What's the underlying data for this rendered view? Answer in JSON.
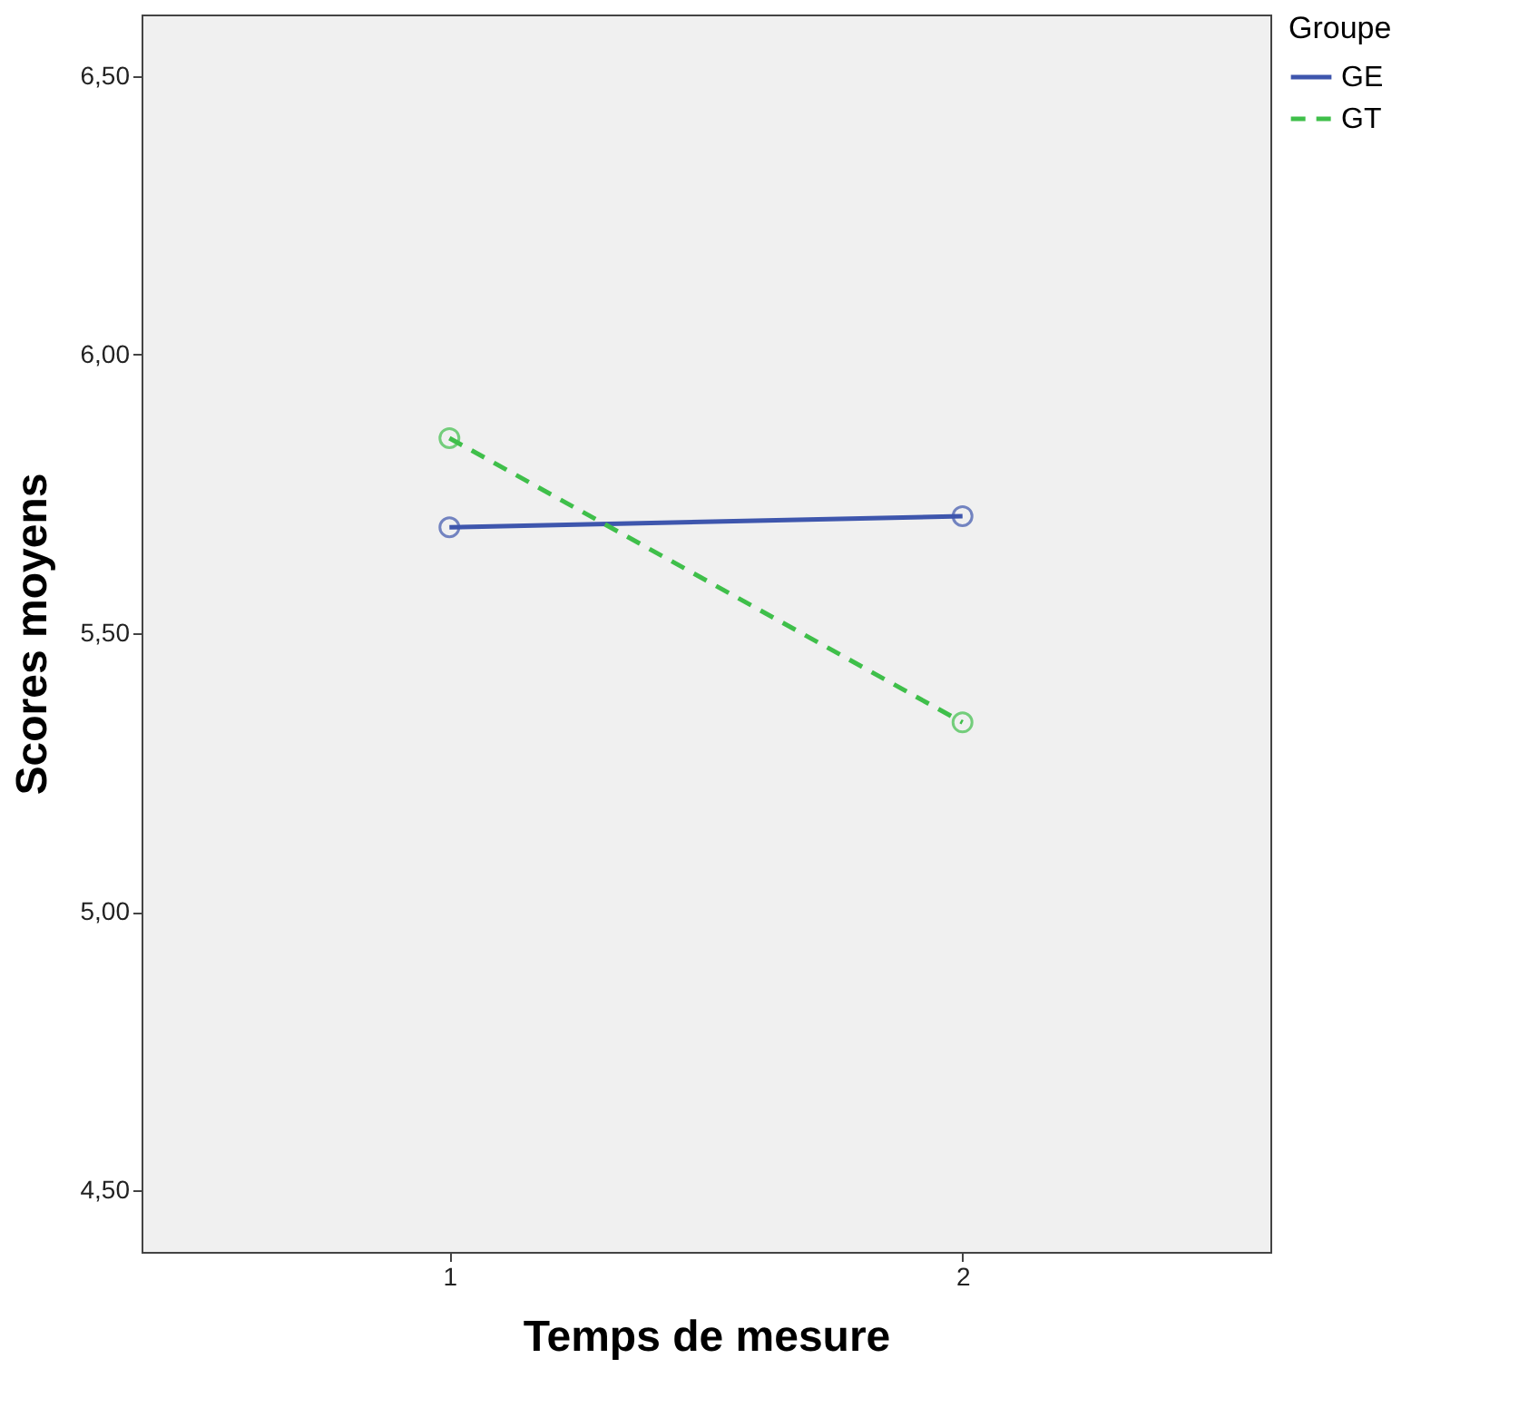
{
  "chart_data": {
    "type": "line",
    "xlabel": "Temps de mesure",
    "ylabel": "Scores moyens",
    "legend_title": "Groupe",
    "categories": [
      "1",
      "2"
    ],
    "series": [
      {
        "name": "GE",
        "color": "#3e56ad",
        "values": [
          5.69,
          5.71
        ],
        "line_style": "solid"
      },
      {
        "name": "GT",
        "color": "#3fbf4a",
        "values": [
          5.85,
          5.34
        ],
        "line_style": "dashed"
      }
    ],
    "ylim": [
      4.39,
      6.61
    ],
    "yticks": [
      {
        "value": 4.5,
        "label": "4,50"
      },
      {
        "value": 5.0,
        "label": "5,00"
      },
      {
        "value": 5.5,
        "label": "5,50"
      },
      {
        "value": 6.0,
        "label": "6,00"
      },
      {
        "value": 6.5,
        "label": "6,50"
      }
    ],
    "grid": false,
    "legend": "top right",
    "marker": "circle"
  }
}
